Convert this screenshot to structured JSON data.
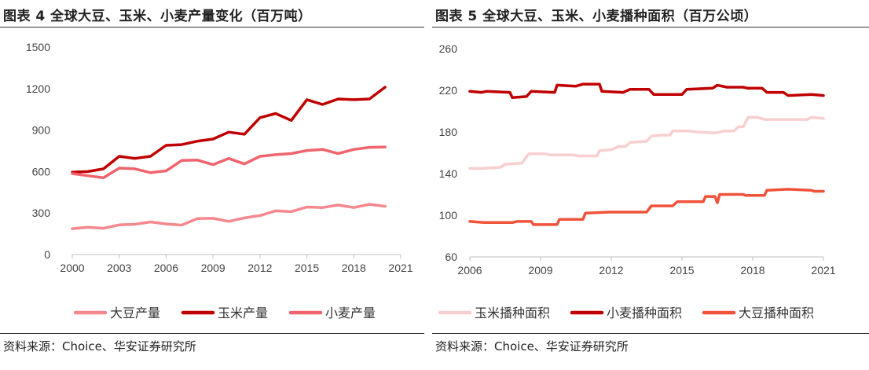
{
  "charts": [
    {
      "title": "图表 4  全球大豆、玉米、小麦产量变化（百万吨）",
      "source": "资料来源：Choice、华安证券研究所"
    },
    {
      "title": "图表 5  全球大豆、玉米、小麦播种面积（百万公顷）",
      "source": "资料来源：Choice、华安证券研究所"
    }
  ],
  "chart_data": [
    {
      "type": "line",
      "title": "图表 4  全球大豆、玉米、小麦产量变化（百万吨）",
      "xlabel": "",
      "ylabel": "",
      "x": [
        2000,
        2001,
        2002,
        2003,
        2004,
        2005,
        2006,
        2007,
        2008,
        2009,
        2010,
        2011,
        2012,
        2013,
        2014,
        2015,
        2016,
        2017,
        2018,
        2019,
        2020
      ],
      "xticks": [
        2000,
        2003,
        2006,
        2009,
        2012,
        2015,
        2018,
        2021
      ],
      "yticks": [
        0,
        300,
        600,
        900,
        1200,
        1500
      ],
      "xlim": [
        2000,
        2021
      ],
      "ylim": [
        0,
        1500
      ],
      "grid": false,
      "legend_position": "bottom",
      "series": [
        {
          "name": "大豆产量",
          "color": "#f4888e",
          "values": [
            187,
            197,
            190,
            214,
            219,
            236,
            221,
            213,
            260,
            262,
            240,
            265,
            282,
            316,
            310,
            344,
            340,
            358,
            340,
            363,
            349
          ]
        },
        {
          "name": "玉米产量",
          "color": "#c00000",
          "values": [
            596,
            600,
            620,
            710,
            695,
            710,
            790,
            795,
            820,
            835,
            885,
            870,
            990,
            1020,
            970,
            1120,
            1085,
            1125,
            1120,
            1125,
            1210
          ]
        },
        {
          "name": "小麦产量",
          "color": "#f0646e",
          "values": [
            585,
            570,
            555,
            625,
            620,
            592,
            605,
            680,
            683,
            650,
            695,
            655,
            710,
            722,
            730,
            752,
            760,
            730,
            760,
            775,
            778
          ]
        }
      ]
    },
    {
      "type": "line",
      "title": "图表 5  全球大豆、玉米、小麦播种面积（百万公顷）",
      "xlabel": "",
      "ylabel": "",
      "xticks": [
        2006,
        2009,
        2012,
        2015,
        2018,
        2021
      ],
      "yticks": [
        60,
        100,
        140,
        180,
        220,
        260
      ],
      "xlim": [
        2006,
        2021
      ],
      "ylim": [
        60,
        260
      ],
      "grid": false,
      "legend_position": "bottom",
      "series": [
        {
          "name": "玉米播种面积",
          "color": "#f8cfcf",
          "points": [
            [
              2006.0,
              145
            ],
            [
              2006.5,
              145
            ],
            [
              2007.3,
              146
            ],
            [
              2007.5,
              149
            ],
            [
              2008.2,
              150
            ],
            [
              2008.5,
              159
            ],
            [
              2009.2,
              159
            ],
            [
              2009.4,
              158
            ],
            [
              2010.4,
              158
            ],
            [
              2010.6,
              157
            ],
            [
              2011.4,
              157
            ],
            [
              2011.5,
              162
            ],
            [
              2012.0,
              163
            ],
            [
              2012.3,
              166
            ],
            [
              2012.6,
              166
            ],
            [
              2012.8,
              170
            ],
            [
              2013.5,
              171
            ],
            [
              2013.7,
              176
            ],
            [
              2014.2,
              177
            ],
            [
              2014.5,
              177
            ],
            [
              2014.6,
              181
            ],
            [
              2015.3,
              181
            ],
            [
              2015.6,
              180
            ],
            [
              2016.4,
              179
            ],
            [
              2016.8,
              181
            ],
            [
              2017.2,
              181
            ],
            [
              2017.4,
              185
            ],
            [
              2017.6,
              185
            ],
            [
              2017.8,
              194
            ],
            [
              2018.2,
              194
            ],
            [
              2018.5,
              192
            ],
            [
              2020.3,
              192
            ],
            [
              2020.5,
              194
            ],
            [
              2021.0,
              193
            ]
          ]
        },
        {
          "name": "小麦播种面积",
          "color": "#c00000",
          "points": [
            [
              2006.0,
              219
            ],
            [
              2006.5,
              218
            ],
            [
              2006.7,
              219
            ],
            [
              2007.7,
              218
            ],
            [
              2007.8,
              213
            ],
            [
              2008.4,
              214
            ],
            [
              2008.6,
              219
            ],
            [
              2009.6,
              218
            ],
            [
              2009.7,
              225
            ],
            [
              2010.5,
              224
            ],
            [
              2010.8,
              226
            ],
            [
              2011.5,
              226
            ],
            [
              2011.6,
              219
            ],
            [
              2012.5,
              218
            ],
            [
              2012.8,
              221
            ],
            [
              2013.6,
              221
            ],
            [
              2013.8,
              216
            ],
            [
              2015.0,
              216
            ],
            [
              2015.2,
              221
            ],
            [
              2016.3,
              222
            ],
            [
              2016.5,
              225
            ],
            [
              2016.9,
              223
            ],
            [
              2017.6,
              223
            ],
            [
              2017.8,
              222
            ],
            [
              2018.4,
              222
            ],
            [
              2018.6,
              218
            ],
            [
              2019.3,
              218
            ],
            [
              2019.5,
              215
            ],
            [
              2020.5,
              216
            ],
            [
              2021.0,
              215
            ]
          ]
        },
        {
          "name": "大豆播种面积",
          "color": "#f0533a",
          "points": [
            [
              2006.0,
              94
            ],
            [
              2006.6,
              93
            ],
            [
              2007.8,
              93
            ],
            [
              2008.0,
              94
            ],
            [
              2008.6,
              94
            ],
            [
              2008.7,
              91
            ],
            [
              2009.7,
              91
            ],
            [
              2009.8,
              96
            ],
            [
              2010.8,
              96
            ],
            [
              2010.9,
              102
            ],
            [
              2011.9,
              103
            ],
            [
              2013.5,
              103
            ],
            [
              2013.7,
              109
            ],
            [
              2014.6,
              109
            ],
            [
              2014.8,
              113
            ],
            [
              2015.9,
              113
            ],
            [
              2016.0,
              118
            ],
            [
              2016.4,
              118
            ],
            [
              2016.5,
              112
            ],
            [
              2016.6,
              120
            ],
            [
              2017.6,
              120
            ],
            [
              2017.7,
              119
            ],
            [
              2018.5,
              119
            ],
            [
              2018.6,
              124
            ],
            [
              2019.5,
              125
            ],
            [
              2020.5,
              124
            ],
            [
              2020.6,
              123
            ],
            [
              2021.0,
              123
            ]
          ]
        }
      ]
    }
  ]
}
